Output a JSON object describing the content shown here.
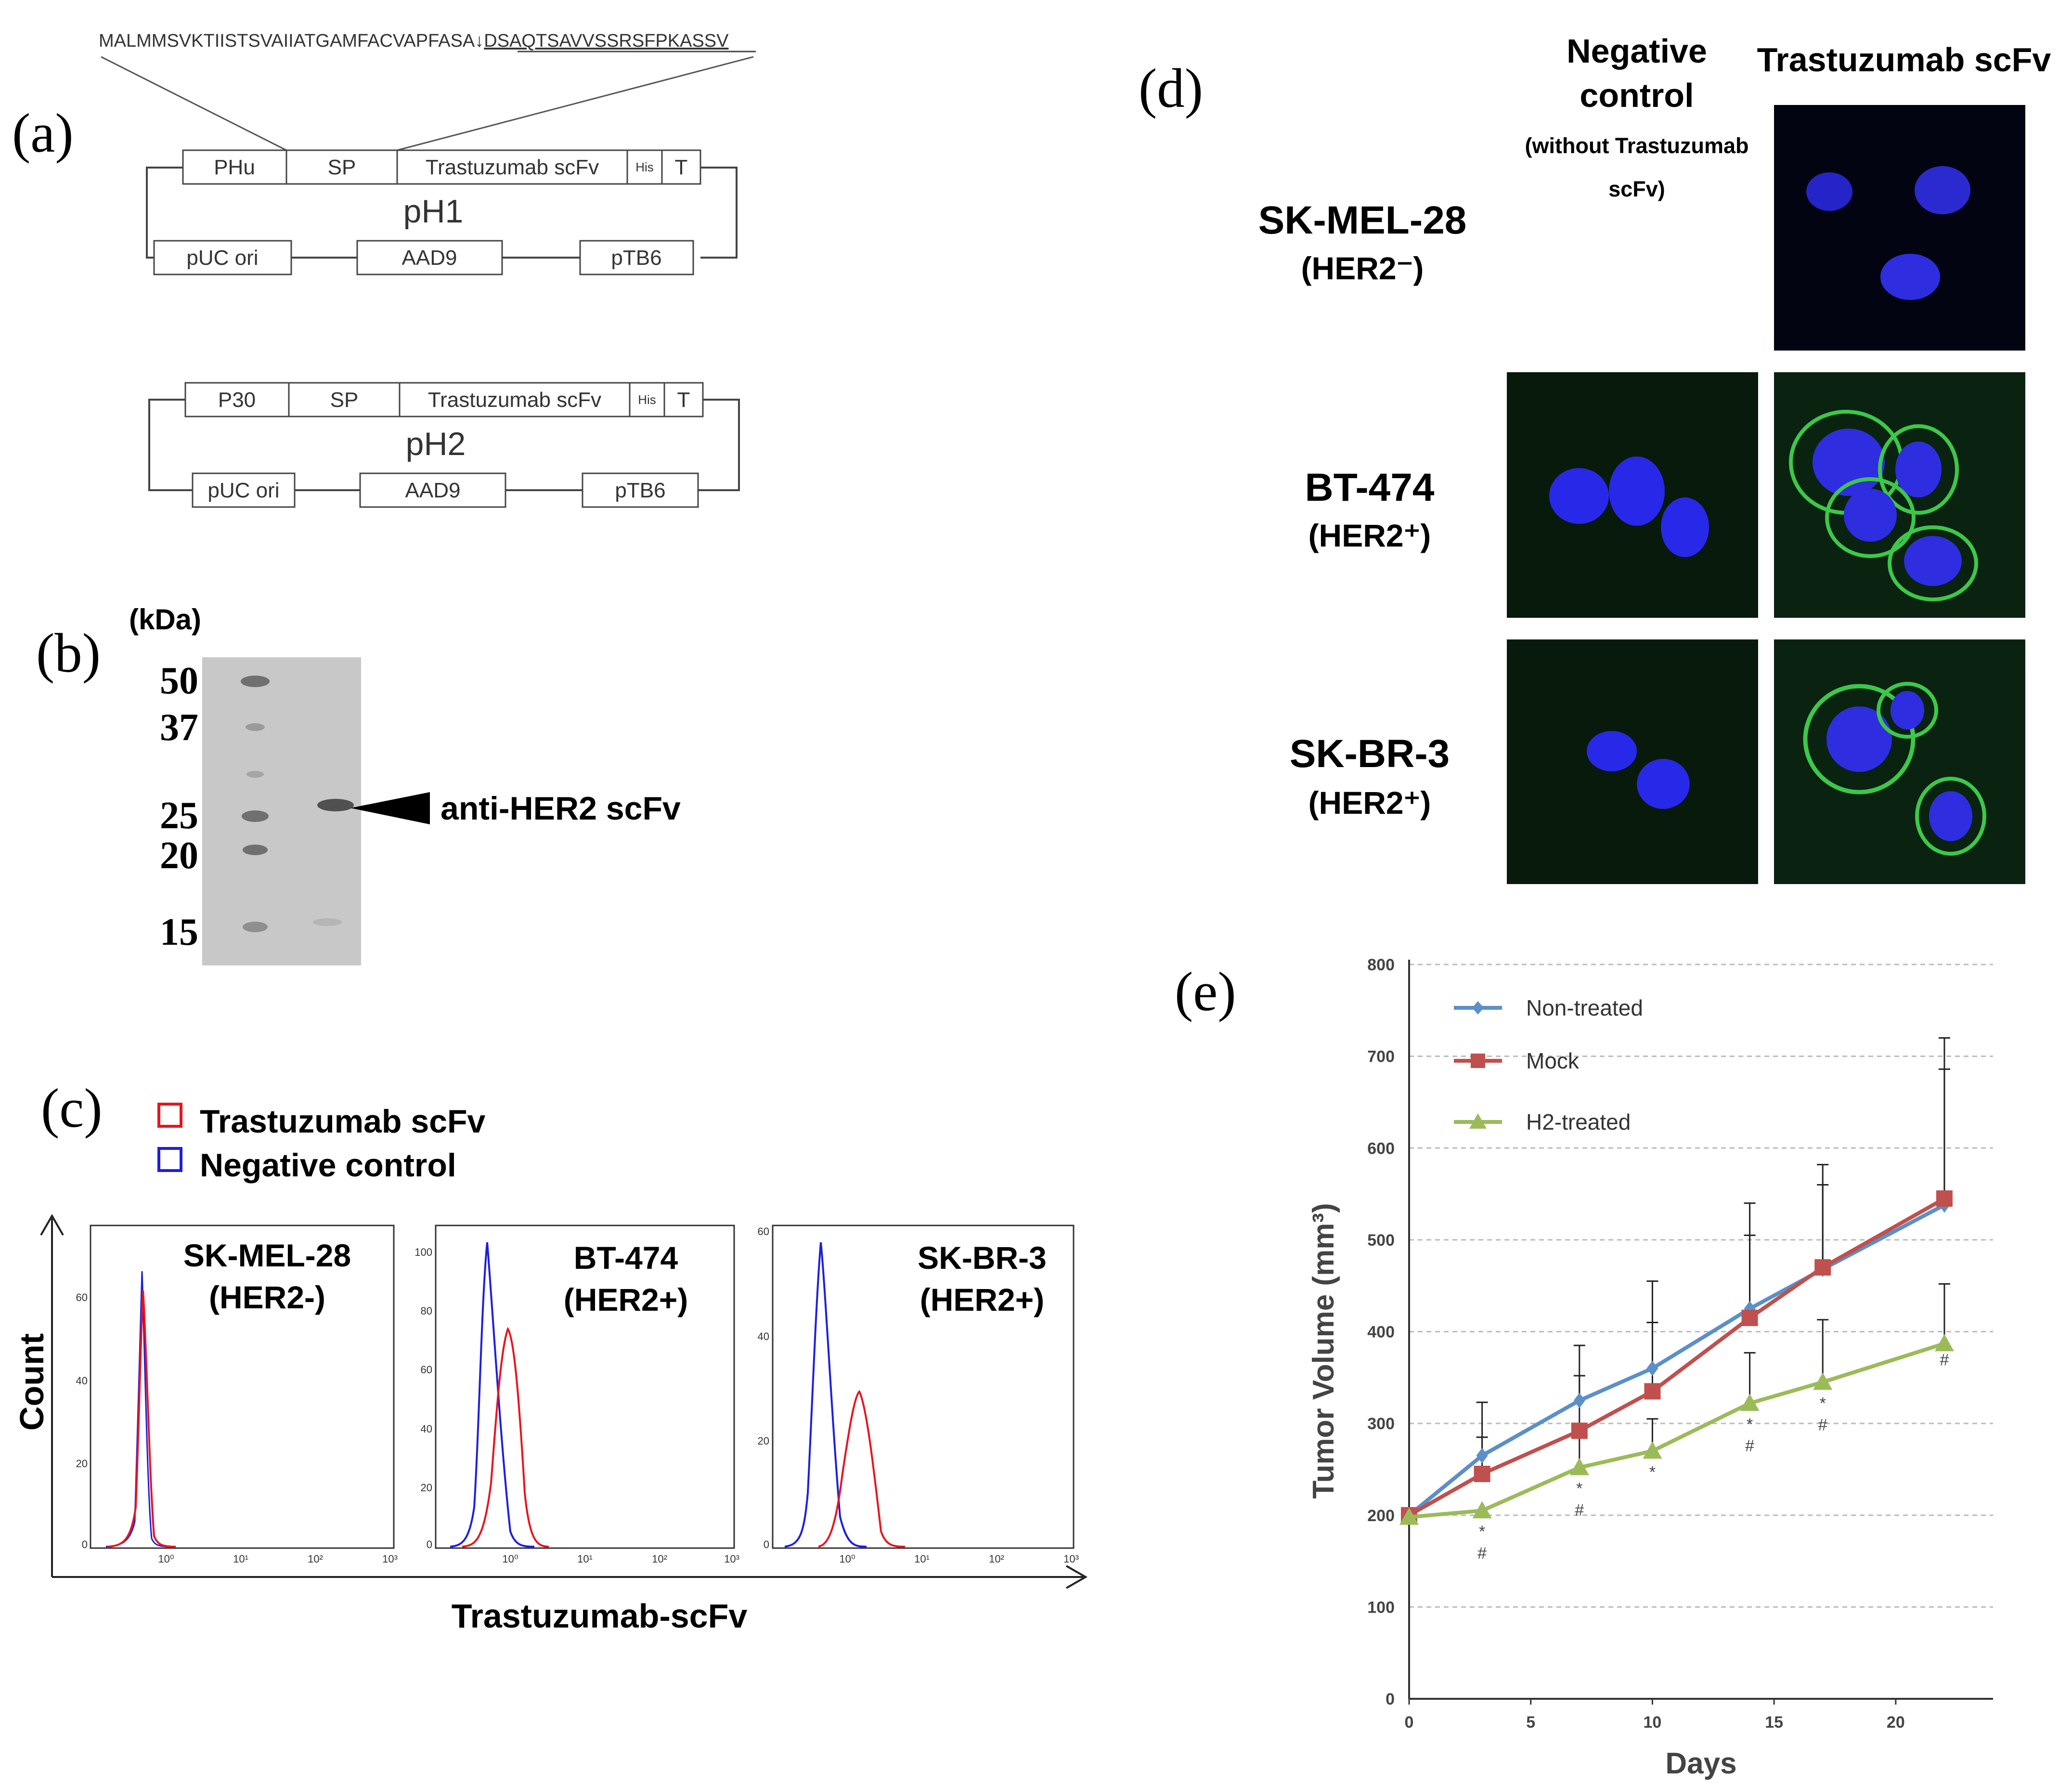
{
  "panels": {
    "a": "(a)",
    "b": "(b)",
    "c": "(c)",
    "d": "(d)",
    "e": "(e)"
  },
  "panel_a": {
    "sequence_left": "MALMMSVKTIISTSVAIIATGAMFACVAPFASA",
    "cleavage_arrow": "↓",
    "sequence_right": "DSAQTSAVVSSRSFPKASSV",
    "pH1": {
      "name": "pH1",
      "top_boxes": [
        "PHu",
        "SP",
        "Trastuzumab scFv",
        "His",
        "T"
      ],
      "bottom_boxes": [
        "pUC ori",
        "AAD9",
        "pTB6"
      ]
    },
    "pH2": {
      "name": "pH2",
      "top_boxes": [
        "P30",
        "SP",
        "Trastuzumab scFv",
        "His",
        "T"
      ],
      "bottom_boxes": [
        "pUC ori",
        "AAD9",
        "pTB6"
      ]
    }
  },
  "panel_b": {
    "unit": "(kDa)",
    "markers": [
      "50",
      "37",
      "25",
      "20",
      "15"
    ],
    "band_label": "anti-HER2 scFv"
  },
  "panel_c": {
    "legend": [
      {
        "label": "Trastuzumab scFv",
        "color": "#e8141c"
      },
      {
        "label": "Negative control",
        "color": "#1d1ee0"
      }
    ],
    "y_label": "Count",
    "x_label": "Trastuzumab-scFv",
    "x_ticks": [
      "10⁰",
      "10¹",
      "10²",
      "10³"
    ],
    "plots": [
      {
        "line1": "SK-MEL-28",
        "line2": "(HER2-)",
        "y_ticks": [
          "0",
          "20",
          "40",
          "60"
        ]
      },
      {
        "line1": "BT-474",
        "line2": "(HER2+)",
        "y_ticks": [
          "0",
          "20",
          "40",
          "60",
          "80",
          "100"
        ]
      },
      {
        "line1": "SK-BR-3",
        "line2": "(HER2+)",
        "y_ticks": [
          "0",
          "20",
          "40",
          "60"
        ]
      }
    ]
  },
  "panel_d": {
    "col_neg_1": "Negative",
    "col_neg_2": "control",
    "col_neg_3": "(without Trastuzumab",
    "col_neg_4": "scFv)",
    "col_tras": "Trastuzumab scFv",
    "rows": [
      {
        "name": "SK-MEL-28",
        "her": "(HER2⁻)"
      },
      {
        "name": "BT-474",
        "her": "(HER2⁺)"
      },
      {
        "name": "SK-BR-3",
        "her": "(HER2⁺)"
      }
    ]
  },
  "chart_data": {
    "type": "line",
    "title": "",
    "xlabel": "Days",
    "ylabel": "Tumor Volume (mm³)",
    "x": [
      0,
      3,
      7,
      10,
      14,
      17,
      22
    ],
    "x_ticks": [
      0,
      5,
      10,
      15,
      20
    ],
    "y_ticks": [
      0,
      100,
      200,
      300,
      400,
      500,
      600,
      700,
      800
    ],
    "xlim": [
      0,
      24
    ],
    "ylim": [
      0,
      800
    ],
    "series": [
      {
        "name": "Non-treated",
        "color": "#5b8fc9",
        "marker": "diamond",
        "values": [
          200,
          265,
          325,
          360,
          425,
          468,
          538
        ],
        "errors": [
          0,
          58,
          60,
          95,
          115,
          92,
          148
        ]
      },
      {
        "name": "Mock",
        "color": "#c0504d",
        "marker": "square",
        "values": [
          200,
          245,
          292,
          335,
          415,
          470,
          545
        ],
        "errors": [
          0,
          40,
          60,
          75,
          90,
          112,
          175
        ]
      },
      {
        "name": "H2-treated",
        "color": "#9bbb59",
        "marker": "triangle",
        "values": [
          198,
          205,
          252,
          270,
          322,
          345,
          387
        ],
        "errors": [
          0,
          0,
          35,
          35,
          55,
          68,
          65
        ]
      }
    ],
    "legend": [
      "Non-treated",
      "Mock",
      " H2-treated"
    ],
    "annotations": [
      {
        "x": 3,
        "text": "*"
      },
      {
        "x": 3,
        "text": "#"
      },
      {
        "x": 7,
        "text": "*"
      },
      {
        "x": 7,
        "text": "#"
      },
      {
        "x": 10,
        "text": "*"
      },
      {
        "x": 14,
        "text": "*"
      },
      {
        "x": 14,
        "text": "#"
      },
      {
        "x": 17,
        "text": "*"
      },
      {
        "x": 17,
        "text": "#"
      },
      {
        "x": 22,
        "text": "#"
      }
    ]
  }
}
